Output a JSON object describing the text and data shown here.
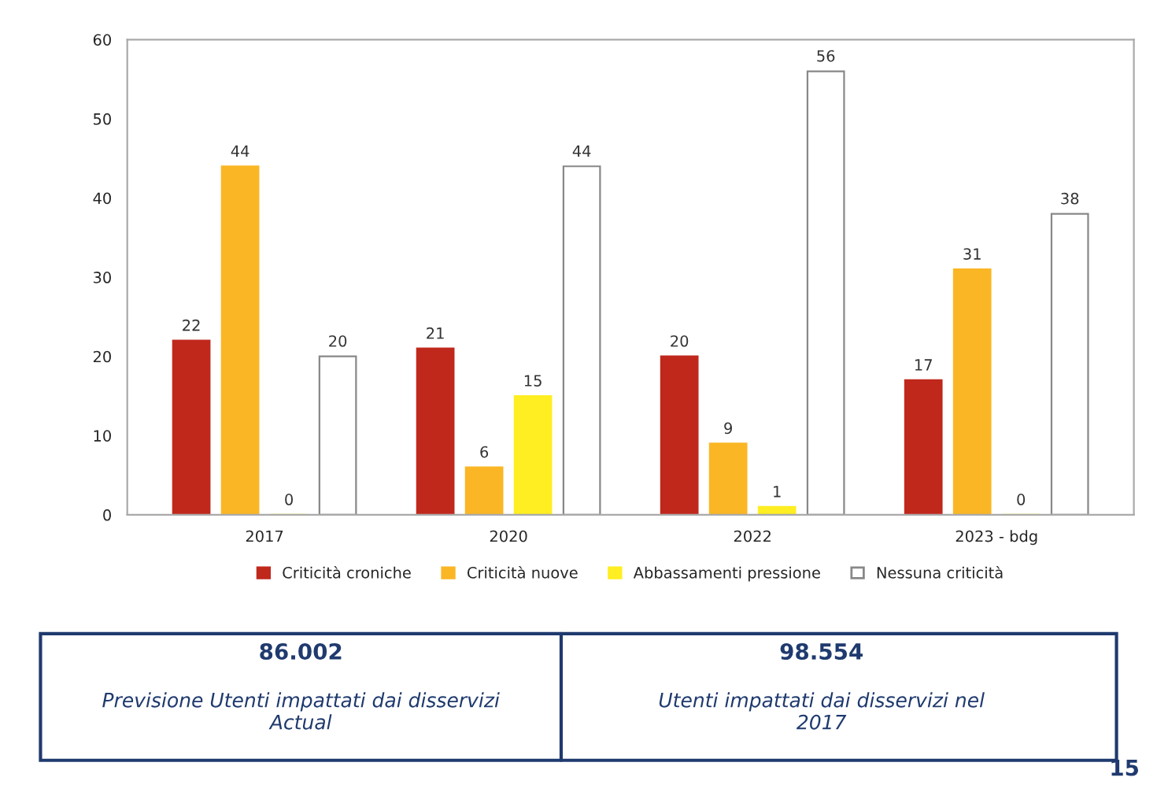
{
  "chart_data": {
    "type": "bar",
    "categories": [
      "2017",
      "2020",
      "2022",
      "2023 - bdg"
    ],
    "series": [
      {
        "name": "Criticità croniche",
        "color": "#c0281c",
        "values": [
          22,
          21,
          20,
          17
        ]
      },
      {
        "name": "Criticità nuove",
        "color": "#fbb625",
        "values": [
          44,
          6,
          9,
          31
        ]
      },
      {
        "name": "Abbassamenti pressione",
        "color": "#ffee22",
        "values": [
          0,
          15,
          1,
          0
        ]
      },
      {
        "name": "Nessuna criticità",
        "color": "#ffffff",
        "values": [
          20,
          44,
          56,
          38
        ]
      }
    ],
    "ylim": [
      0,
      60
    ],
    "yticks": [
      0,
      10,
      20,
      30,
      40,
      50,
      60
    ],
    "data_labels": true,
    "grid": false,
    "legend": "bottom",
    "annotations": [
      "86.002",
      "Previsione Utenti impattati dai disservizi\nActual",
      "98.554",
      "Utenti impattati dai disservizi nel\n2017",
      "15"
    ]
  }
}
